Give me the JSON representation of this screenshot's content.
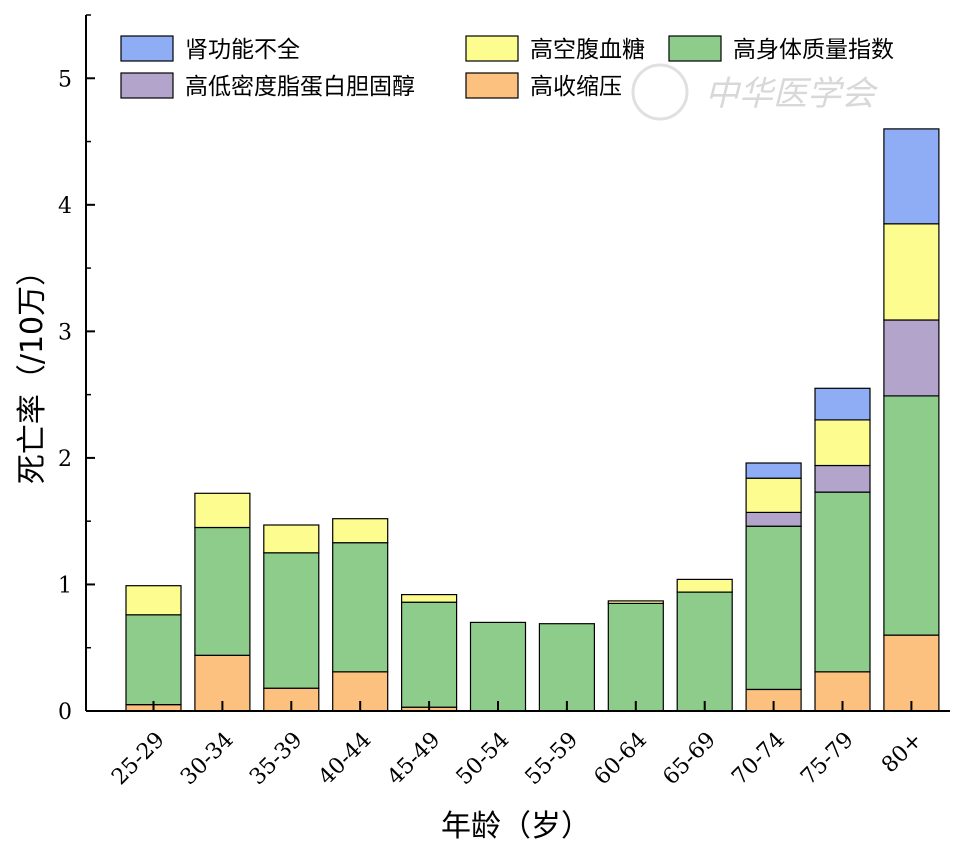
{
  "chart_data": {
    "type": "bar",
    "stacked": true,
    "categories": [
      "25-29",
      "30-34",
      "35-39",
      "40-44",
      "45-49",
      "50-54",
      "55-59",
      "60-64",
      "65-69",
      "70-74",
      "75-79",
      "80+"
    ],
    "ylabel": "死亡率（/10万）",
    "xlabel": "年龄（岁）",
    "ylim": [
      0,
      5.5
    ],
    "yticks": [
      0,
      1,
      2,
      3,
      4,
      5
    ],
    "grid": false,
    "legend_position": "top",
    "series": [
      {
        "name": "高收缩压",
        "color": "#fcc07f",
        "values": [
          0.05,
          0.44,
          0.18,
          0.31,
          0.03,
          0,
          0,
          0,
          0,
          0.17,
          0.31,
          0.6
        ]
      },
      {
        "name": "高身体质量指数",
        "color": "#8ecc8b",
        "values": [
          0.71,
          1.01,
          1.07,
          1.02,
          0.83,
          0.7,
          0.69,
          0.85,
          0.94,
          1.29,
          1.42,
          1.89
        ]
      },
      {
        "name": "高低密度脂蛋白胆固醇",
        "color": "#b3a4cc",
        "values": [
          0,
          0,
          0,
          0,
          0,
          0,
          0,
          0,
          0,
          0.11,
          0.21,
          0.6
        ]
      },
      {
        "name": "高空腹血糖",
        "color": "#fdfd8f",
        "values": [
          0.23,
          0.27,
          0.22,
          0.19,
          0.06,
          0,
          0,
          0.02,
          0.1,
          0.27,
          0.36,
          0.76
        ]
      },
      {
        "name": "肾功能不全",
        "color": "#8eadf5",
        "values": [
          0,
          0,
          0,
          0,
          0,
          0,
          0,
          0,
          0,
          0.12,
          0.25,
          0.75
        ]
      }
    ],
    "legend_order": [
      "肾功能不全",
      "高空腹血糖",
      "高身体质量指数",
      "高低密度脂蛋白胆固醇",
      "高收缩压"
    ]
  },
  "watermark": "中华医学会"
}
